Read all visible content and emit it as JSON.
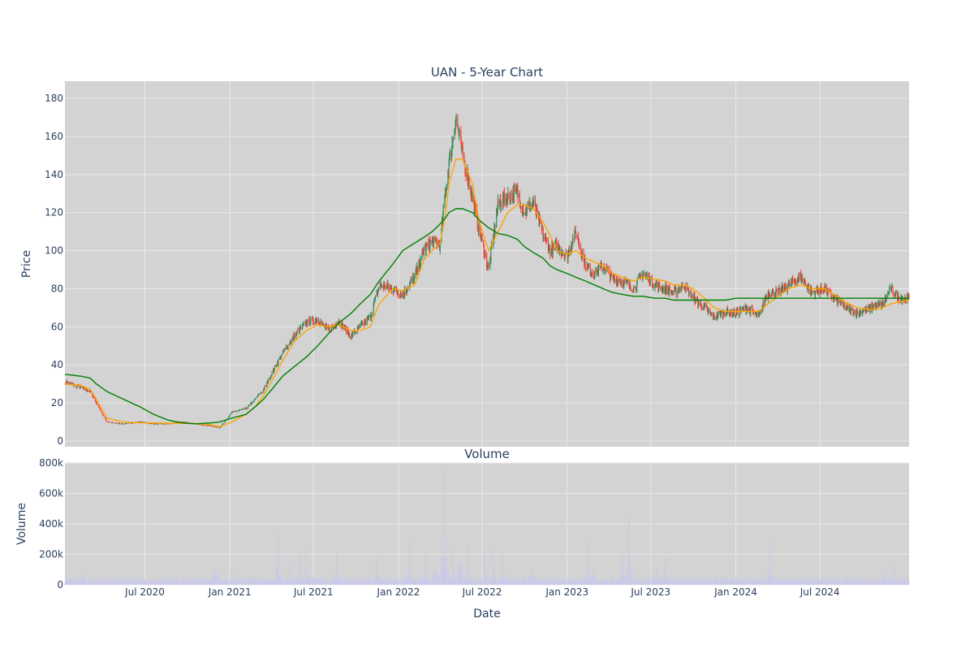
{
  "colors": {
    "plot_bg": "#d3d3d3",
    "grid": "#e8e8ec",
    "candle_up": "#2e8b57",
    "candle_down": "#ff3b30",
    "ma_short": "#ffa500",
    "ma_long": "#008000",
    "volume_bar": "#c9c8ec"
  },
  "chart_data": [
    {
      "type": "candlestick",
      "title": "UAN - 5-Year Chart",
      "ylabel": "Price",
      "xlabel": "",
      "ylim": [
        -3,
        189
      ],
      "xlim": [
        "2020-01-10",
        "2025-01-10"
      ],
      "yticks": [
        0,
        20,
        40,
        60,
        80,
        100,
        120,
        140,
        160,
        180
      ],
      "ytick_labels": [
        "0",
        "20",
        "40",
        "60",
        "80",
        "100",
        "120",
        "140",
        "160",
        "180"
      ],
      "grid": true,
      "legend": "none",
      "series": [
        {
          "values_type": "close",
          "x": [
            "2020-01-10",
            "2020-02-15",
            "2020-03-05",
            "2020-03-18",
            "2020-04-10",
            "2020-05-15",
            "2020-06-20",
            "2020-07-20",
            "2020-08-20",
            "2020-09-20",
            "2020-10-20",
            "2020-11-20",
            "2020-12-10",
            "2021-01-05",
            "2021-02-05",
            "2021-02-25",
            "2021-03-15",
            "2021-04-05",
            "2021-04-25",
            "2021-05-20",
            "2021-06-15",
            "2021-07-10",
            "2021-08-01",
            "2021-08-25",
            "2021-09-20",
            "2021-10-10",
            "2021-11-01",
            "2021-11-20",
            "2021-12-20",
            "2022-01-10",
            "2022-02-05",
            "2022-02-25",
            "2022-03-15",
            "2022-04-01",
            "2022-04-12",
            "2022-04-20",
            "2022-05-05",
            "2022-05-20",
            "2022-06-10",
            "2022-06-25",
            "2022-07-15",
            "2022-08-05",
            "2022-08-25",
            "2022-09-15",
            "2022-10-01",
            "2022-10-20",
            "2022-11-10",
            "2022-11-25",
            "2022-12-10",
            "2023-01-01",
            "2023-01-20",
            "2023-02-10",
            "2023-03-01",
            "2023-03-20",
            "2023-04-10",
            "2023-05-01",
            "2023-05-25",
            "2023-06-15",
            "2023-07-10",
            "2023-08-01",
            "2023-08-20",
            "2023-09-10",
            "2023-10-01",
            "2023-10-25",
            "2023-11-15",
            "2023-12-10",
            "2024-01-01",
            "2024-01-25",
            "2024-02-20",
            "2024-03-10",
            "2024-04-01",
            "2024-04-25",
            "2024-05-20",
            "2024-06-15",
            "2024-07-10",
            "2024-08-01",
            "2024-08-25",
            "2024-09-20",
            "2024-10-20",
            "2024-11-15",
            "2024-12-01",
            "2024-12-20",
            "2025-01-10"
          ],
          "close": [
            31,
            28,
            26,
            20,
            10,
            9,
            10,
            9,
            9,
            10,
            9,
            8,
            7,
            15,
            17,
            22,
            27,
            37,
            46,
            55,
            62,
            64,
            58,
            63,
            55,
            60,
            65,
            82,
            80,
            77,
            86,
            100,
            105,
            103,
            130,
            145,
            170,
            150,
            128,
            110,
            90,
            125,
            128,
            130,
            120,
            125,
            108,
            100,
            103,
            97,
            110,
            92,
            88,
            92,
            85,
            84,
            80,
            88,
            82,
            80,
            78,
            82,
            75,
            70,
            65,
            68,
            67,
            70,
            65,
            78,
            78,
            82,
            86,
            78,
            80,
            75,
            70,
            67,
            70,
            72,
            80,
            75,
            75
          ]
        },
        {
          "name": "",
          "role": "ma_short",
          "values": [
            30,
            29,
            27,
            22,
            12,
            10,
            9.5,
            9.5,
            9.3,
            9.3,
            9.1,
            8.6,
            7.5,
            10,
            14,
            18,
            24,
            33,
            42,
            52,
            58,
            61,
            60,
            61,
            58,
            58,
            60,
            72,
            80,
            79,
            82,
            95,
            100,
            104,
            118,
            135,
            148,
            148,
            135,
            115,
            100,
            110,
            120,
            124,
            124,
            122,
            115,
            108,
            100,
            98,
            100,
            96,
            94,
            92,
            88,
            86,
            84,
            86,
            85,
            84,
            82,
            82,
            80,
            75,
            70,
            68,
            68,
            68,
            68,
            72,
            76,
            80,
            82,
            80,
            80,
            77,
            73,
            70,
            69,
            70,
            72,
            73,
            74
          ]
        },
        {
          "name": "",
          "role": "ma_long",
          "values": [
            35,
            34,
            33,
            30,
            26,
            22,
            18,
            14,
            11,
            9.5,
            9,
            9.5,
            10,
            12,
            14,
            18,
            22,
            28,
            34,
            39,
            44,
            50,
            56,
            62,
            67,
            72,
            77,
            84,
            93,
            100,
            104,
            107,
            110,
            114,
            117,
            120,
            122,
            122,
            120,
            116,
            112,
            109,
            108,
            106,
            102,
            99,
            96,
            92,
            90,
            88,
            86,
            84,
            82,
            80,
            78,
            77,
            76,
            76,
            75,
            75,
            74,
            74,
            74,
            74,
            74,
            74,
            75,
            75,
            75,
            75,
            75,
            75,
            75,
            75,
            75,
            75,
            75,
            75,
            75,
            75,
            75,
            75,
            75
          ]
        }
      ]
    },
    {
      "type": "bar",
      "title": "Volume",
      "xlabel": "Date",
      "ylabel": "Volume",
      "ylim": [
        0,
        800000
      ],
      "yticks": [
        0,
        200000,
        400000,
        600000,
        800000
      ],
      "ytick_labels": [
        "0",
        "200k",
        "400k",
        "600k",
        "800k"
      ],
      "xticks": [
        "2020-07-01",
        "2021-01-01",
        "2021-07-01",
        "2022-01-01",
        "2022-07-01",
        "2023-01-01",
        "2023-07-01",
        "2024-01-01",
        "2024-07-01"
      ],
      "xtick_labels": [
        "Jul 2020",
        "Jan 2021",
        "Jul 2021",
        "Jan 2022",
        "Jul 2022",
        "Jan 2023",
        "Jul 2023",
        "Jan 2024",
        "Jul 2024"
      ],
      "volume_spikes": [
        {
          "x": "2020-01-25",
          "v": 90000
        },
        {
          "x": "2020-02-20",
          "v": 85000
        },
        {
          "x": "2020-03-15",
          "v": 80000
        },
        {
          "x": "2020-11-28",
          "v": 260000
        },
        {
          "x": "2020-12-05",
          "v": 160000
        },
        {
          "x": "2021-01-05",
          "v": 90000
        },
        {
          "x": "2021-04-15",
          "v": 360000
        },
        {
          "x": "2021-05-10",
          "v": 150000
        },
        {
          "x": "2021-06-01",
          "v": 200000
        },
        {
          "x": "2021-06-15",
          "v": 220000
        },
        {
          "x": "2021-08-20",
          "v": 210000
        },
        {
          "x": "2021-11-15",
          "v": 180000
        },
        {
          "x": "2022-01-25",
          "v": 270000
        },
        {
          "x": "2022-03-01",
          "v": 210000
        },
        {
          "x": "2022-03-20",
          "v": 280000
        },
        {
          "x": "2022-04-08",
          "v": 760000
        },
        {
          "x": "2022-04-15",
          "v": 300000
        },
        {
          "x": "2022-04-28",
          "v": 220000
        },
        {
          "x": "2022-05-15",
          "v": 460000
        },
        {
          "x": "2022-06-01",
          "v": 260000
        },
        {
          "x": "2022-07-05",
          "v": 210000
        },
        {
          "x": "2022-07-25",
          "v": 230000
        },
        {
          "x": "2022-08-15",
          "v": 200000
        },
        {
          "x": "2022-10-15",
          "v": 250000
        },
        {
          "x": "2022-11-20",
          "v": 130000
        },
        {
          "x": "2023-02-15",
          "v": 290000
        },
        {
          "x": "2023-02-25",
          "v": 280000
        },
        {
          "x": "2023-05-01",
          "v": 200000
        },
        {
          "x": "2023-05-15",
          "v": 470000
        },
        {
          "x": "2023-07-15",
          "v": 250000
        },
        {
          "x": "2023-08-01",
          "v": 180000
        },
        {
          "x": "2023-12-10",
          "v": 130000
        },
        {
          "x": "2024-03-15",
          "v": 290000
        },
        {
          "x": "2024-05-25",
          "v": 90000
        },
        {
          "x": "2024-11-15",
          "v": 100000
        },
        {
          "x": "2024-12-10",
          "v": 110000
        }
      ]
    }
  ]
}
